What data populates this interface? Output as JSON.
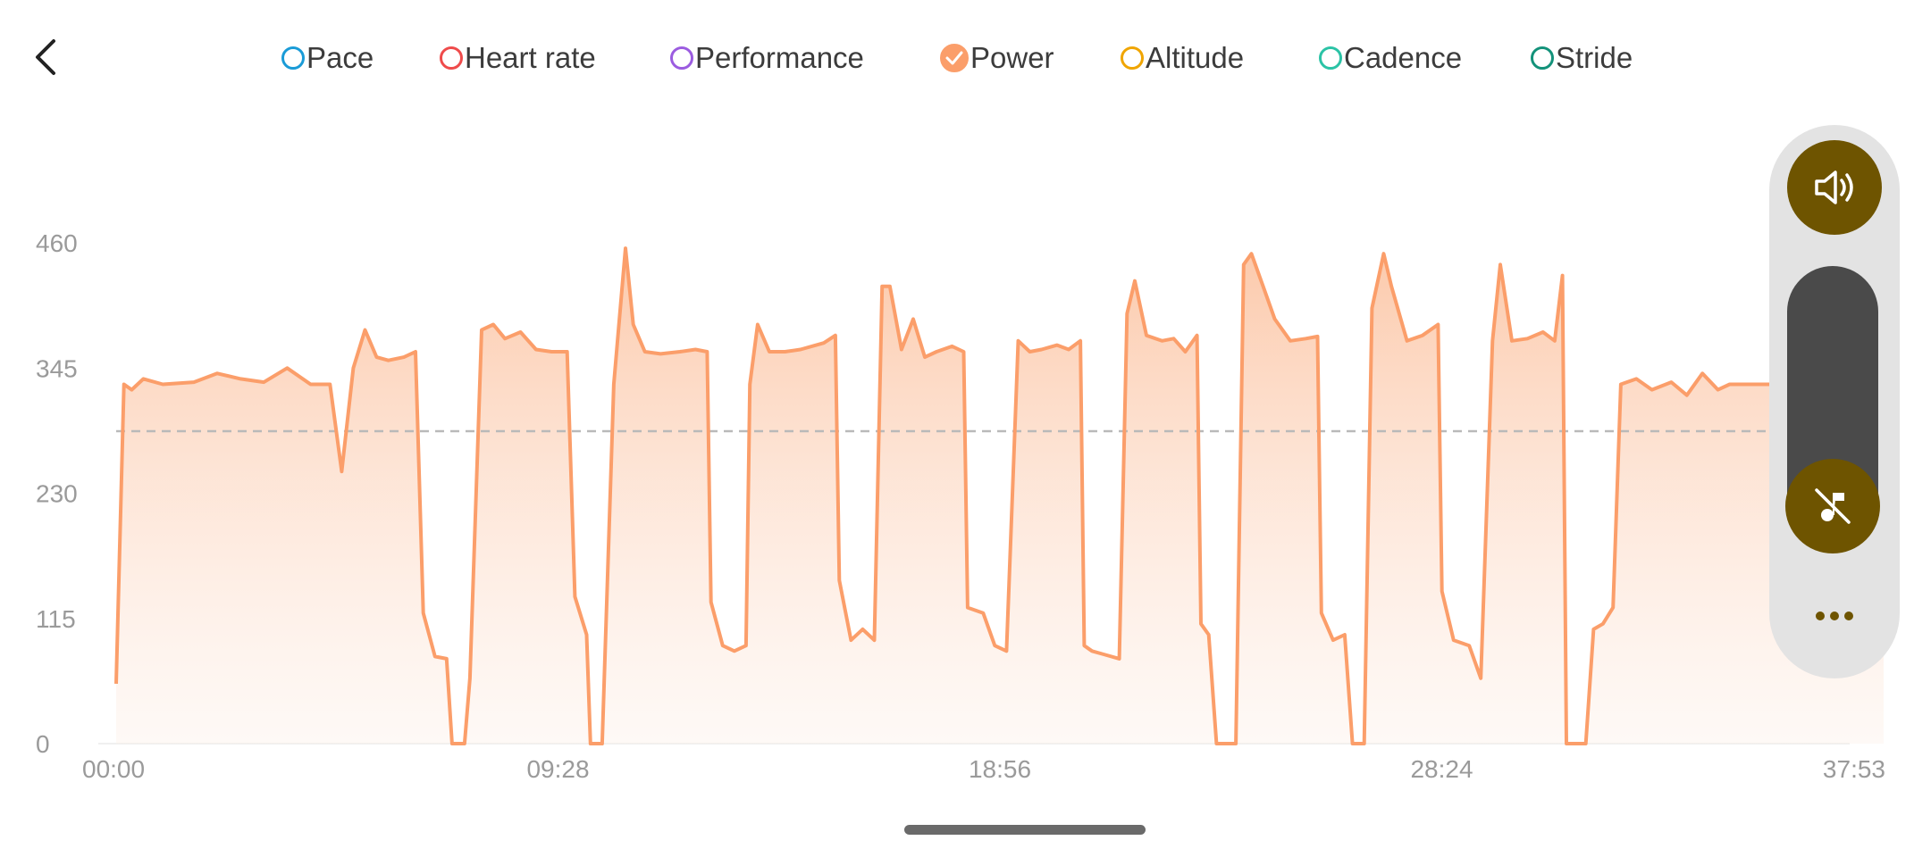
{
  "legend": [
    {
      "label": "Pace",
      "color": "#1a9bd7",
      "selected": false
    },
    {
      "label": "Heart rate",
      "color": "#ef4b4b",
      "selected": false
    },
    {
      "label": "Performance",
      "color": "#9b5ce0",
      "selected": false
    },
    {
      "label": "Power",
      "color": "#fb9e6a",
      "selected": true
    },
    {
      "label": "Altitude",
      "color": "#f0a500",
      "selected": false
    },
    {
      "label": "Cadence",
      "color": "#2bc3a6",
      "selected": false
    },
    {
      "label": "Stride",
      "color": "#13927a",
      "selected": false
    }
  ],
  "icons": {
    "back": "chevron-left-icon",
    "sound": "speaker-icon",
    "mute": "music-off-icon",
    "more": "more-icon"
  },
  "chart_data": {
    "type": "area",
    "series": [
      {
        "name": "Power",
        "color": "#fb9e6a"
      }
    ],
    "y_ticks": [
      "0",
      "115",
      "230",
      "345",
      "460"
    ],
    "x_ticks": [
      "00:00",
      "09:28",
      "18:56",
      "28:24",
      "37:53"
    ],
    "ylim": [
      0,
      460
    ],
    "xlim_seconds": [
      0,
      2273
    ],
    "average_line": 287,
    "grid": false,
    "legend_position": "top",
    "points": [
      [
        0,
        55
      ],
      [
        10,
        330
      ],
      [
        20,
        325
      ],
      [
        35,
        335
      ],
      [
        60,
        330
      ],
      [
        100,
        332
      ],
      [
        130,
        340
      ],
      [
        160,
        335
      ],
      [
        190,
        332
      ],
      [
        220,
        345
      ],
      [
        250,
        330
      ],
      [
        275,
        330
      ],
      [
        290,
        250
      ],
      [
        305,
        345
      ],
      [
        320,
        380
      ],
      [
        335,
        355
      ],
      [
        350,
        352
      ],
      [
        370,
        355
      ],
      [
        385,
        360
      ],
      [
        395,
        120
      ],
      [
        410,
        80
      ],
      [
        425,
        78
      ],
      [
        432,
        0
      ],
      [
        448,
        0
      ],
      [
        455,
        60
      ],
      [
        470,
        380
      ],
      [
        485,
        385
      ],
      [
        500,
        372
      ],
      [
        520,
        378
      ],
      [
        540,
        362
      ],
      [
        560,
        360
      ],
      [
        580,
        360
      ],
      [
        590,
        135
      ],
      [
        605,
        100
      ],
      [
        610,
        0
      ],
      [
        625,
        0
      ],
      [
        640,
        330
      ],
      [
        655,
        455
      ],
      [
        665,
        385
      ],
      [
        680,
        360
      ],
      [
        700,
        358
      ],
      [
        725,
        360
      ],
      [
        745,
        362
      ],
      [
        760,
        360
      ],
      [
        765,
        130
      ],
      [
        780,
        90
      ],
      [
        795,
        85
      ],
      [
        810,
        90
      ],
      [
        815,
        330
      ],
      [
        825,
        385
      ],
      [
        840,
        360
      ],
      [
        860,
        360
      ],
      [
        880,
        362
      ],
      [
        910,
        368
      ],
      [
        925,
        375
      ],
      [
        930,
        150
      ],
      [
        945,
        95
      ],
      [
        960,
        105
      ],
      [
        975,
        95
      ],
      [
        985,
        420
      ],
      [
        995,
        420
      ],
      [
        1010,
        362
      ],
      [
        1025,
        390
      ],
      [
        1040,
        355
      ],
      [
        1055,
        360
      ],
      [
        1075,
        365
      ],
      [
        1090,
        360
      ],
      [
        1095,
        125
      ],
      [
        1115,
        120
      ],
      [
        1130,
        90
      ],
      [
        1145,
        85
      ],
      [
        1160,
        370
      ],
      [
        1175,
        360
      ],
      [
        1190,
        362
      ],
      [
        1210,
        366
      ],
      [
        1225,
        362
      ],
      [
        1240,
        370
      ],
      [
        1245,
        90
      ],
      [
        1255,
        85
      ],
      [
        1270,
        82
      ],
      [
        1290,
        78
      ],
      [
        1300,
        395
      ],
      [
        1310,
        425
      ],
      [
        1325,
        375
      ],
      [
        1345,
        370
      ],
      [
        1360,
        372
      ],
      [
        1375,
        360
      ],
      [
        1390,
        375
      ],
      [
        1395,
        110
      ],
      [
        1405,
        100
      ],
      [
        1415,
        0
      ],
      [
        1440,
        0
      ],
      [
        1450,
        440
      ],
      [
        1460,
        450
      ],
      [
        1475,
        420
      ],
      [
        1490,
        390
      ],
      [
        1510,
        370
      ],
      [
        1530,
        372
      ],
      [
        1545,
        374
      ],
      [
        1550,
        120
      ],
      [
        1565,
        95
      ],
      [
        1580,
        100
      ],
      [
        1590,
        0
      ],
      [
        1605,
        0
      ],
      [
        1615,
        400
      ],
      [
        1630,
        450
      ],
      [
        1640,
        420
      ],
      [
        1660,
        370
      ],
      [
        1680,
        375
      ],
      [
        1700,
        385
      ],
      [
        1705,
        140
      ],
      [
        1720,
        95
      ],
      [
        1740,
        90
      ],
      [
        1755,
        60
      ],
      [
        1770,
        370
      ],
      [
        1780,
        440
      ],
      [
        1795,
        370
      ],
      [
        1815,
        372
      ],
      [
        1835,
        378
      ],
      [
        1850,
        370
      ],
      [
        1860,
        430
      ],
      [
        1865,
        0
      ],
      [
        1890,
        0
      ],
      [
        1900,
        105
      ],
      [
        1912,
        110
      ],
      [
        1925,
        125
      ],
      [
        1935,
        330
      ],
      [
        1955,
        335
      ],
      [
        1975,
        325
      ],
      [
        2000,
        332
      ],
      [
        2020,
        320
      ],
      [
        2040,
        340
      ],
      [
        2060,
        325
      ],
      [
        2075,
        330
      ],
      [
        2100,
        330
      ],
      [
        2150,
        330
      ],
      [
        2200,
        330
      ],
      [
        2273,
        330
      ]
    ]
  }
}
